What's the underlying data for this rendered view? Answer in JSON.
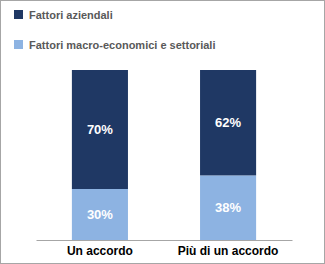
{
  "chart_data": {
    "type": "bar",
    "stacked": true,
    "data_labels": true,
    "tick_labels": "x",
    "categories": [
      "Un accordo",
      "Più di un accordo"
    ],
    "ylim": [
      0,
      100
    ],
    "series": [
      {
        "name": "Fattori macro-economici e settoriali",
        "color": "#8db3e2",
        "values": [
          30,
          38
        ],
        "value_labels": [
          "30%",
          "38%"
        ]
      },
      {
        "name": "Fattori aziendali",
        "color": "#1f3864",
        "values": [
          70,
          62
        ],
        "value_labels": [
          "70%",
          "62%"
        ]
      }
    ]
  }
}
